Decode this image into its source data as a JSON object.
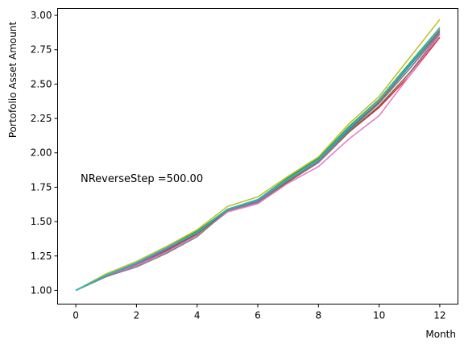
{
  "chart_data": {
    "type": "line",
    "title": "",
    "xlabel": "Month",
    "ylabel": "Portofolio Asset Amount",
    "annotation": "NReverseStep =500.00",
    "xlim": [
      -0.6,
      12.6
    ],
    "ylim": [
      0.9,
      3.05
    ],
    "xticks": [
      0,
      2,
      4,
      6,
      8,
      10,
      12
    ],
    "yticks": [
      1.0,
      1.25,
      1.5,
      1.75,
      2.0,
      2.25,
      2.5,
      2.75,
      3.0
    ],
    "ytick_labels": [
      "1.00",
      "1.25",
      "1.50",
      "1.75",
      "2.00",
      "2.25",
      "2.50",
      "2.75",
      "3.00"
    ],
    "x": [
      0,
      1,
      2,
      3,
      4,
      5,
      6,
      7,
      8,
      9,
      10,
      11,
      12
    ],
    "grid": false,
    "legend": "none",
    "series": [
      {
        "color": "#1f77b4",
        "values": [
          1.0,
          1.11,
          1.19,
          1.3,
          1.42,
          1.58,
          1.65,
          1.8,
          1.94,
          2.17,
          2.37,
          2.63,
          2.89
        ]
      },
      {
        "color": "#ff7f0e",
        "values": [
          1.0,
          1.11,
          1.2,
          1.3,
          1.42,
          1.59,
          1.66,
          1.81,
          1.95,
          2.18,
          2.38,
          2.64,
          2.9
        ]
      },
      {
        "color": "#2ca02c",
        "values": [
          1.0,
          1.11,
          1.2,
          1.31,
          1.43,
          1.59,
          1.66,
          1.82,
          1.96,
          2.19,
          2.39,
          2.65,
          2.91
        ]
      },
      {
        "color": "#d62728",
        "values": [
          1.0,
          1.1,
          1.18,
          1.29,
          1.41,
          1.58,
          1.64,
          1.79,
          1.93,
          2.15,
          2.33,
          2.56,
          2.84
        ]
      },
      {
        "color": "#9467bd",
        "values": [
          1.0,
          1.11,
          1.19,
          1.3,
          1.42,
          1.58,
          1.65,
          1.8,
          1.94,
          2.16,
          2.36,
          2.61,
          2.87
        ]
      },
      {
        "color": "#8c564b",
        "values": [
          1.0,
          1.1,
          1.18,
          1.29,
          1.41,
          1.58,
          1.64,
          1.79,
          1.93,
          2.15,
          2.34,
          2.58,
          2.86
        ]
      },
      {
        "color": "#e377c2",
        "values": [
          1.0,
          1.1,
          1.18,
          1.28,
          1.4,
          1.57,
          1.63,
          1.78,
          1.9,
          2.1,
          2.27,
          2.56,
          2.86
        ]
      },
      {
        "color": "#7f7f7f",
        "values": [
          1.0,
          1.1,
          1.17,
          1.27,
          1.39,
          1.58,
          1.64,
          1.8,
          1.93,
          2.16,
          2.36,
          2.61,
          2.88
        ]
      },
      {
        "color": "#bcbd22",
        "values": [
          1.0,
          1.12,
          1.21,
          1.32,
          1.44,
          1.61,
          1.68,
          1.83,
          1.97,
          2.21,
          2.41,
          2.69,
          2.97
        ]
      },
      {
        "color": "#17becf",
        "values": [
          1.0,
          1.11,
          1.2,
          1.31,
          1.42,
          1.59,
          1.66,
          1.81,
          1.95,
          2.18,
          2.39,
          2.64,
          2.91
        ]
      }
    ]
  }
}
